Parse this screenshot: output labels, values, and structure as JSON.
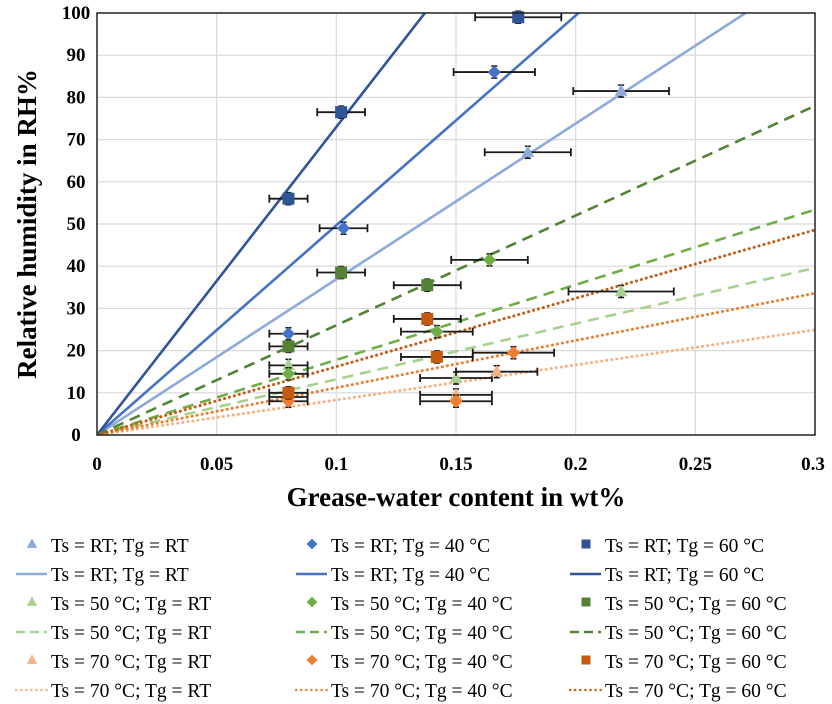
{
  "chart_data": {
    "type": "scatter",
    "title": "",
    "xlabel": "Grease-water content in wt%",
    "ylabel": "Relative humidity in RH%",
    "xlim": [
      0,
      0.3
    ],
    "ylim": [
      0,
      100
    ],
    "xticks": [
      "0",
      "0.05",
      "0.1",
      "0.15",
      "0.2",
      "0.25",
      "0.3"
    ],
    "xtick_values": [
      0,
      0.05,
      0.1,
      0.15,
      0.2,
      0.25,
      0.3
    ],
    "yticks": [
      "0",
      "10",
      "20",
      "30",
      "40",
      "50",
      "60",
      "70",
      "80",
      "90",
      "100"
    ],
    "ytick_values": [
      0,
      10,
      20,
      30,
      40,
      50,
      60,
      70,
      80,
      90,
      100
    ],
    "grid": true,
    "legend_position": "bottom",
    "series": [
      {
        "name": "Ts = RT; Tg = RT",
        "kind": "points",
        "marker": "triangle",
        "color": "#8EA9DB",
        "x": [
          0.18,
          0.219
        ],
        "y": [
          67,
          81.5
        ],
        "xerr": [
          0.018,
          0.02
        ]
      },
      {
        "name": "Ts = RT; Tg = 40 °C",
        "kind": "points",
        "marker": "diamond",
        "color": "#4472C4",
        "x": [
          0.08,
          0.103,
          0.166
        ],
        "y": [
          24,
          49,
          86
        ],
        "xerr": [
          0.008,
          0.01,
          0.017
        ]
      },
      {
        "name": "Ts = RT; Tg = 60 °C",
        "kind": "points",
        "marker": "square",
        "color": "#2F5597",
        "x": [
          0.08,
          0.102,
          0.176
        ],
        "y": [
          56,
          76.5,
          99
        ],
        "xerr": [
          0.008,
          0.01,
          0.018
        ]
      },
      {
        "name": "Ts = RT; Tg = RT",
        "kind": "line",
        "dash": "solid",
        "color": "#8EA9DB",
        "slope": 369
      },
      {
        "name": "Ts = RT; Tg = 40 °C",
        "kind": "line",
        "dash": "solid",
        "color": "#4472C4",
        "slope": 497
      },
      {
        "name": "Ts = RT; Tg = 60 °C",
        "kind": "line",
        "dash": "solid",
        "color": "#2F5597",
        "slope": 730
      },
      {
        "name": "Ts = 50 °C; Tg = RT",
        "kind": "points",
        "marker": "triangle",
        "color": "#A9D18E",
        "x": [
          0.08,
          0.15,
          0.219
        ],
        "y": [
          16.5,
          13.5,
          34
        ],
        "xerr": [
          0.008,
          0.015,
          0.022
        ]
      },
      {
        "name": "Ts = 50 °C; Tg = 40 °C",
        "kind": "points",
        "marker": "diamond",
        "color": "#70AD47",
        "x": [
          0.08,
          0.142,
          0.164
        ],
        "y": [
          14.5,
          24.5,
          41.5
        ],
        "xerr": [
          0.008,
          0.015,
          0.016
        ]
      },
      {
        "name": "Ts = 50 °C; Tg = 60 °C",
        "kind": "points",
        "marker": "square",
        "color": "#548235",
        "x": [
          0.08,
          0.102,
          0.138
        ],
        "y": [
          21,
          38.5,
          35.5
        ],
        "xerr": [
          0.008,
          0.01,
          0.014
        ]
      },
      {
        "name": "Ts = 50 °C; Tg = RT",
        "kind": "line",
        "dash": "dash",
        "color": "#A9D18E",
        "slope": 132
      },
      {
        "name": "Ts = 50 °C; Tg = 40 °C",
        "kind": "line",
        "dash": "dash",
        "color": "#70AD47",
        "slope": 178
      },
      {
        "name": "Ts = 50 °C; Tg = 60 °C",
        "kind": "line",
        "dash": "dash",
        "color": "#548235",
        "slope": 260
      },
      {
        "name": "Ts = 70 °C; Tg = RT",
        "kind": "points",
        "marker": "triangle",
        "color": "#F4B183",
        "x": [
          0.08,
          0.15,
          0.167
        ],
        "y": [
          9,
          9.5,
          15
        ],
        "xerr": [
          0.008,
          0.015,
          0.017
        ]
      },
      {
        "name": "Ts = 70 °C; Tg = 40 °C",
        "kind": "points",
        "marker": "diamond",
        "color": "#ED7D31",
        "x": [
          0.08,
          0.15,
          0.174
        ],
        "y": [
          8,
          8,
          19.5
        ],
        "xerr": [
          0.008,
          0.015,
          0.017
        ]
      },
      {
        "name": "Ts = 70 °C; Tg = 60 °C",
        "kind": "points",
        "marker": "square",
        "color": "#C55A11",
        "x": [
          0.08,
          0.138,
          0.142
        ],
        "y": [
          10,
          27.5,
          18.5
        ],
        "xerr": [
          0.008,
          0.014,
          0.015
        ]
      },
      {
        "name": "Ts = 70 °C; Tg = RT",
        "kind": "line",
        "dash": "dot",
        "color": "#F4B183",
        "slope": 83
      },
      {
        "name": "Ts = 70 °C; Tg = 40 °C",
        "kind": "line",
        "dash": "dot",
        "color": "#ED7D31",
        "slope": 112
      },
      {
        "name": "Ts = 70 °C; Tg = 60 °C",
        "kind": "line",
        "dash": "dot",
        "color": "#C55A11",
        "slope": 162
      }
    ],
    "legend": [
      {
        "label": "Ts = RT; Tg = RT",
        "series": 0
      },
      {
        "label": "Ts = RT; Tg = 40 °C",
        "series": 1
      },
      {
        "label": "Ts = RT; Tg = 60 °C",
        "series": 2
      },
      {
        "label": "Ts = RT; Tg = RT",
        "series": 3
      },
      {
        "label": "Ts = RT; Tg = 40 °C",
        "series": 4
      },
      {
        "label": "Ts = RT; Tg = 60 °C",
        "series": 5
      },
      {
        "label": "Ts = 50 °C; Tg = RT",
        "series": 6
      },
      {
        "label": "Ts = 50 °C; Tg = 40 °C",
        "series": 7
      },
      {
        "label": "Ts = 50 °C; Tg = 60 °C",
        "series": 8
      },
      {
        "label": "Ts = 50 °C; Tg = RT",
        "series": 9
      },
      {
        "label": "Ts = 50 °C; Tg = 40 °C",
        "series": 10
      },
      {
        "label": "Ts = 50 °C; Tg = 60 °C",
        "series": 11
      },
      {
        "label": "Ts = 70 °C; Tg = RT",
        "series": 12
      },
      {
        "label": "Ts = 70 °C; Tg = 40 °C",
        "series": 13
      },
      {
        "label": "Ts = 70 °C; Tg = 60 °C",
        "series": 14
      },
      {
        "label": "Ts = 70 °C; Tg = RT",
        "series": 15
      },
      {
        "label": "Ts = 70 °C; Tg = 40 °C",
        "series": 16
      },
      {
        "label": "Ts = 70 °C; Tg = 60 °C",
        "series": 17
      }
    ]
  }
}
